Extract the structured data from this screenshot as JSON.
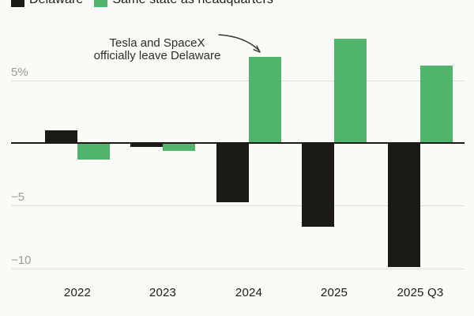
{
  "legend": {
    "items": [
      {
        "label": "Delaware",
        "color": "#1b1a16"
      },
      {
        "label": "Same state as headquarters",
        "color": "#51b46c"
      }
    ]
  },
  "annotation": {
    "line1": "Tesla and SpaceX",
    "line2": "officially leave Delaware"
  },
  "chart_data": {
    "type": "bar",
    "categories": [
      "2022",
      "2023",
      "2024",
      "2025",
      "2025 Q3"
    ],
    "series": [
      {
        "name": "Delaware",
        "color": "#1b1a16",
        "values": [
          1.0,
          -0.3,
          -4.7,
          -6.7,
          -9.9
        ]
      },
      {
        "name": "Same state as headquarters",
        "color": "#51b46c",
        "values": [
          -1.3,
          -0.6,
          6.9,
          8.3,
          6.2
        ]
      }
    ],
    "unit": "%",
    "yticks": [
      {
        "value": 5,
        "label": "5%"
      },
      {
        "value": -5,
        "label": "−5"
      },
      {
        "value": -10,
        "label": "−10"
      }
    ],
    "ylim": [
      -10.5,
      9.5
    ],
    "grid": true,
    "legend_position": "top",
    "annotation_text": "Tesla and SpaceX officially leave Delaware"
  },
  "colors": {
    "background": "#fafaf6",
    "gridline": "#dedcd4",
    "axis_line": "#1b1a16",
    "ytick_label": "#9c9c96",
    "xtick_label": "#1c1b17",
    "annotation_text": "#2e2d29",
    "arrow": "#3a3933"
  }
}
